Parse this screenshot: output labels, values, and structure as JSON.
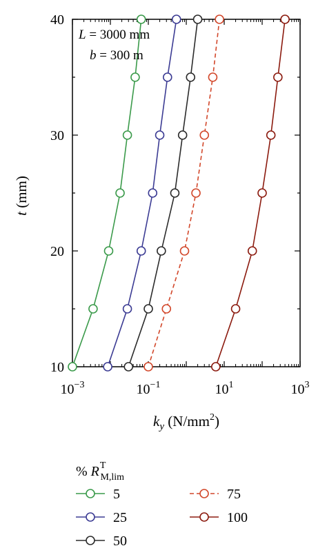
{
  "chart_data": {
    "type": "line",
    "xscale": "log",
    "xlim": [
      0.001,
      1000
    ],
    "ylim": [
      10,
      40
    ],
    "grid": false,
    "title": "",
    "xlabel": {
      "main": "k",
      "sub": "y",
      "unit": " (N/mm",
      "sup": "2",
      "close": ")"
    },
    "ylabel": {
      "main": "t",
      "unit": " (mm)"
    },
    "x_ticks": [
      {
        "value": 0.001,
        "base": "10",
        "exp": "−3"
      },
      {
        "value": 0.1,
        "base": "10",
        "exp": "−1"
      },
      {
        "value": 10,
        "base": "10",
        "exp": "1"
      },
      {
        "value": 1000,
        "base": "10",
        "exp": "3"
      }
    ],
    "y_ticks": [
      {
        "value": 10,
        "label": "10"
      },
      {
        "value": 20,
        "label": "20"
      },
      {
        "value": 30,
        "label": "30"
      },
      {
        "value": 40,
        "label": "40"
      }
    ],
    "annotations": [
      {
        "italic": "L",
        "text": " = 3000 mm"
      },
      {
        "italic": "b",
        "text": " = 300 m"
      }
    ],
    "legend": {
      "placement": "bottom",
      "title": {
        "prefix": "% ",
        "main": "R",
        "sup": "T",
        "sub": "M,lim"
      }
    },
    "series": [
      {
        "name": "5",
        "color": "#3a9a4a",
        "dashed": false,
        "t": [
          10,
          15,
          20,
          25,
          30,
          35,
          40
        ],
        "ky": [
          0.001,
          0.0035,
          0.009,
          0.018,
          0.028,
          0.045,
          0.065
        ]
      },
      {
        "name": "25",
        "color": "#3b3b93",
        "dashed": false,
        "t": [
          10,
          15,
          20,
          25,
          30,
          35,
          40
        ],
        "ky": [
          0.0085,
          0.028,
          0.065,
          0.13,
          0.2,
          0.32,
          0.55
        ]
      },
      {
        "name": "50",
        "color": "#2b2b2b",
        "dashed": false,
        "t": [
          10,
          15,
          20,
          25,
          30,
          35,
          40
        ],
        "ky": [
          0.03,
          0.1,
          0.22,
          0.5,
          0.8,
          1.3,
          2.0
        ]
      },
      {
        "name": "75",
        "color": "#d2472a",
        "dashed": true,
        "t": [
          10,
          15,
          20,
          25,
          30,
          35,
          40
        ],
        "ky": [
          0.1,
          0.3,
          0.9,
          1.8,
          3.0,
          5.0,
          7.5
        ]
      },
      {
        "name": "100",
        "color": "#8b1a0e",
        "dashed": false,
        "t": [
          10,
          15,
          20,
          25,
          30,
          35,
          40
        ],
        "ky": [
          6.0,
          20,
          55,
          100,
          170,
          260,
          400
        ]
      }
    ]
  }
}
